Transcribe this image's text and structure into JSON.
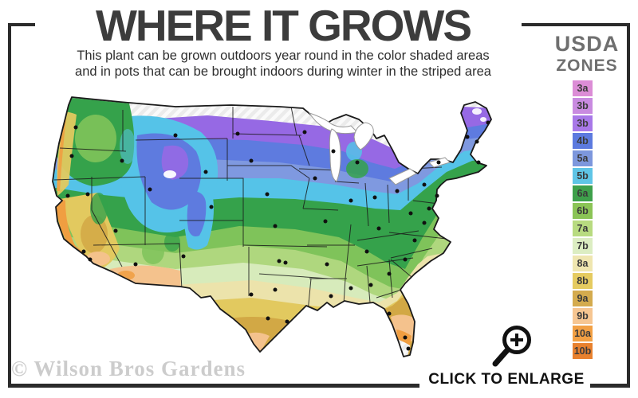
{
  "header": {
    "title": "WHERE IT GROWS",
    "subtitle_line1": "This plant can be grown outdoors year round in the color shaded areas",
    "subtitle_line2": "and in pots that can be brought indoors during winter in the striped area"
  },
  "legend": {
    "title_line1": "USDA",
    "title_line2": "ZONES",
    "items": [
      {
        "label": "3a",
        "color": "#DC8DD6"
      },
      {
        "label": "3b",
        "color": "#C98BE0"
      },
      {
        "label": "3b",
        "color": "#A878E8"
      },
      {
        "label": "4b",
        "color": "#5C7ADF"
      },
      {
        "label": "5a",
        "color": "#7D97DD"
      },
      {
        "label": "5b",
        "color": "#5FC5E6"
      },
      {
        "label": "6a",
        "color": "#3EA04B"
      },
      {
        "label": "6b",
        "color": "#8BC456"
      },
      {
        "label": "7a",
        "color": "#B8DB80"
      },
      {
        "label": "7b",
        "color": "#DCEDC2"
      },
      {
        "label": "8a",
        "color": "#EFE6B0"
      },
      {
        "label": "8b",
        "color": "#E5CB60"
      },
      {
        "label": "9a",
        "color": "#D4AB4E"
      },
      {
        "label": "9b",
        "color": "#F6C692"
      },
      {
        "label": "10a",
        "color": "#F2A044"
      },
      {
        "label": "10b",
        "color": "#E8812E"
      }
    ]
  },
  "map": {
    "description": "USDA hardiness zone map of the continental United States",
    "city_dots": [
      [
        75,
        48
      ],
      [
        70,
        84
      ],
      [
        133,
        90
      ],
      [
        200,
        58
      ],
      [
        278,
        56
      ],
      [
        362,
        54
      ],
      [
        398,
        78
      ],
      [
        428,
        92
      ],
      [
        592,
        42
      ],
      [
        566,
        60
      ],
      [
        578,
        66
      ],
      [
        530,
        92
      ],
      [
        580,
        92
      ],
      [
        512,
        120
      ],
      [
        528,
        134
      ],
      [
        65,
        134
      ],
      [
        90,
        132
      ],
      [
        168,
        126
      ],
      [
        238,
        104
      ],
      [
        295,
        90
      ],
      [
        375,
        112
      ],
      [
        315,
        132
      ],
      [
        420,
        140
      ],
      [
        450,
        136
      ],
      [
        478,
        128
      ],
      [
        245,
        148
      ],
      [
        325,
        172
      ],
      [
        388,
        166
      ],
      [
        455,
        175
      ],
      [
        495,
        156
      ],
      [
        518,
        150
      ],
      [
        512,
        168
      ],
      [
        500,
        190
      ],
      [
        488,
        214
      ],
      [
        440,
        204
      ],
      [
        390,
        220
      ],
      [
        330,
        216
      ],
      [
        338,
        218
      ],
      [
        210,
        210
      ],
      [
        150,
        220
      ],
      [
        125,
        178
      ],
      [
        93,
        214
      ],
      [
        85,
        204
      ],
      [
        295,
        258
      ],
      [
        325,
        252
      ],
      [
        316,
        288
      ],
      [
        340,
        292
      ],
      [
        395,
        260
      ],
      [
        420,
        250
      ],
      [
        445,
        246
      ],
      [
        468,
        232
      ],
      [
        468,
        282
      ],
      [
        488,
        312
      ],
      [
        492,
        326
      ]
    ]
  },
  "footer": {
    "watermark": "© Wilson Bros Gardens",
    "enlarge_label": "CLICK TO ENLARGE"
  }
}
